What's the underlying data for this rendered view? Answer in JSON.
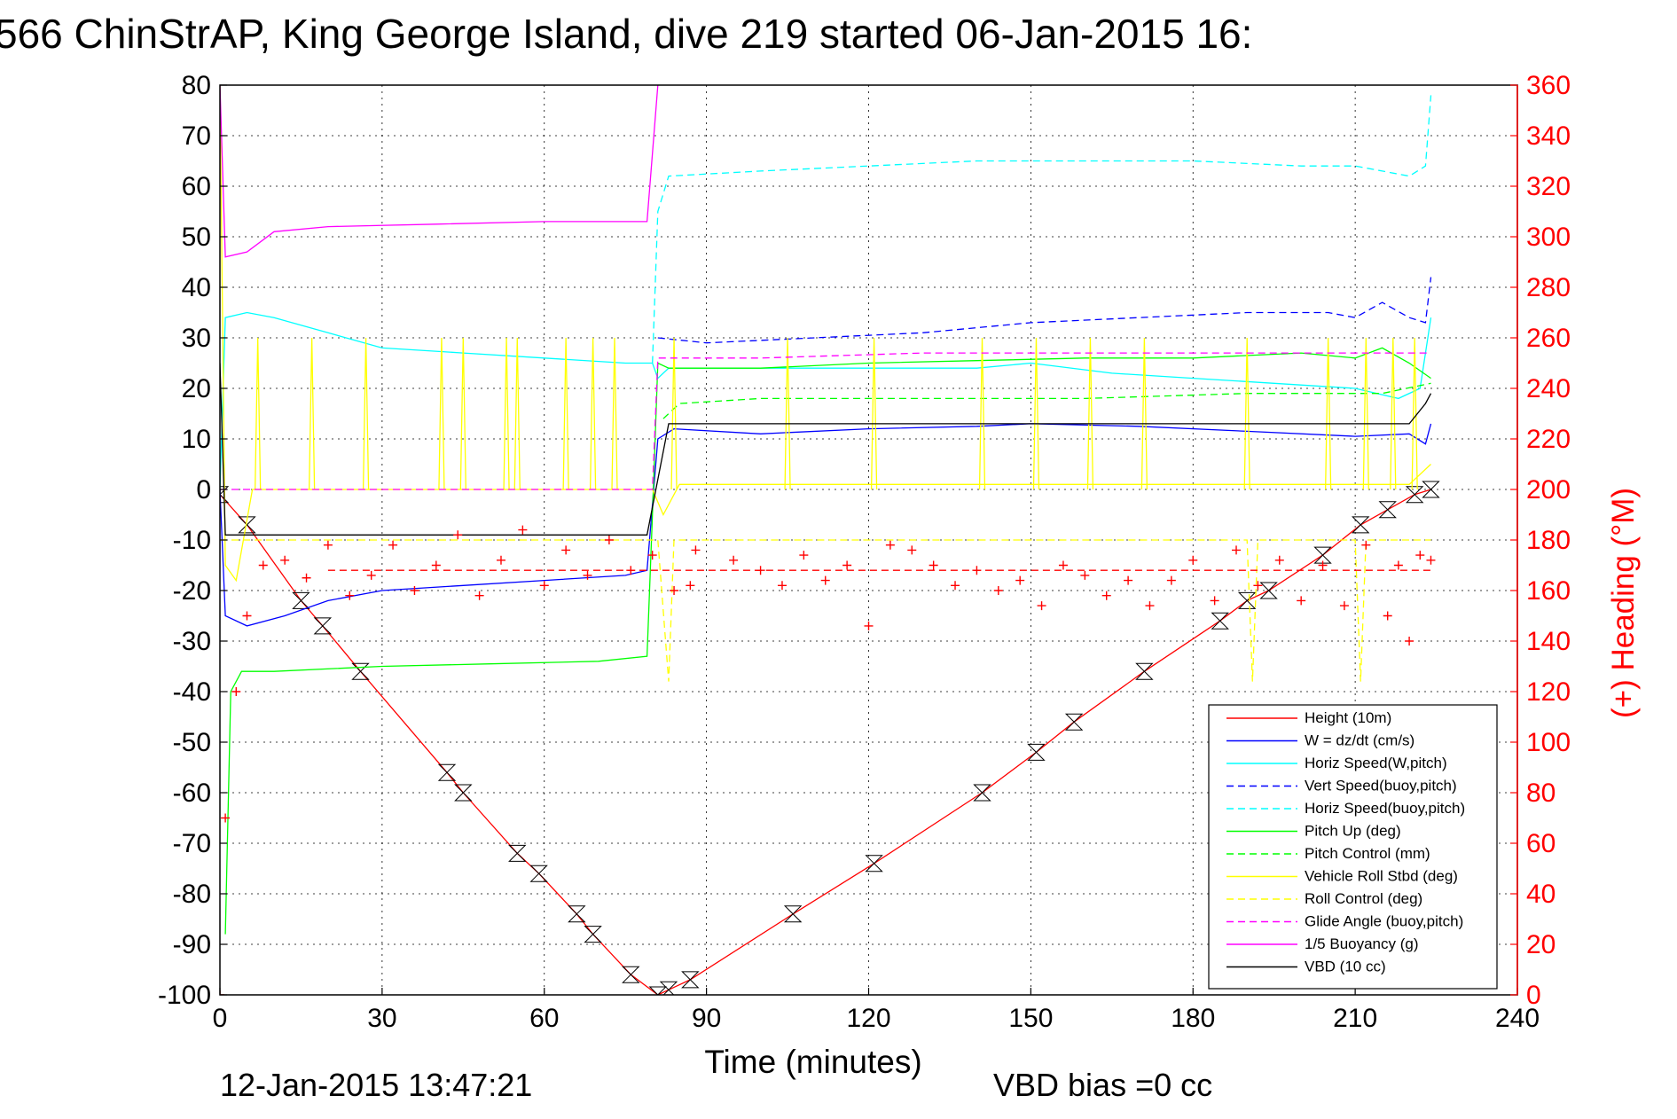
{
  "chart_data": {
    "type": "line",
    "title": "566 ChinStrAP, King George Island, dive 219 started 06-Jan-2015 16:",
    "xlabel": "Time (minutes)",
    "ylabel_right": "(+) Heading (°M)",
    "footer_left": "12-Jan-2015 13:47:21",
    "footer_right": "VBD bias =0 cc",
    "xlim": [
      0,
      240
    ],
    "ylim_left": [
      -100,
      80
    ],
    "ylim_right": [
      0,
      360
    ],
    "grid": true,
    "legend_position": "bottom-right",
    "x_ticks": [
      "0",
      "30",
      "60",
      "90",
      "120",
      "150",
      "180",
      "210",
      "240"
    ],
    "y_ticks_left": [
      "80",
      "70",
      "60",
      "50",
      "40",
      "30",
      "20",
      "10",
      "0",
      "-10",
      "-20",
      "-30",
      "-40",
      "-50",
      "-60",
      "-70",
      "-80",
      "-90",
      "-100"
    ],
    "y_ticks_right": [
      "360",
      "340",
      "320",
      "300",
      "280",
      "260",
      "240",
      "220",
      "200",
      "180",
      "160",
      "140",
      "120",
      "100",
      "80",
      "60",
      "40",
      "20",
      "0"
    ],
    "colors": {
      "height": "#ff0000",
      "w": "#0000ff",
      "horiz_speed": "#00ffff",
      "vert_speed_buoy": "#0000ff",
      "horiz_speed_buoy": "#00ffff",
      "pitch_up": "#00ff00",
      "pitch_control": "#00ff00",
      "roll": "#ffff00",
      "roll_control": "#ffff00",
      "glide_angle": "#ff00ff",
      "buoyancy": "#ff00ff",
      "vbd": "#000000",
      "heading": "#ff0000"
    },
    "series": [
      {
        "name": "Height (10m)",
        "style": "solid",
        "color": "#ff0000",
        "points": [
          [
            0,
            -1
          ],
          [
            5,
            -7
          ],
          [
            15,
            -22
          ],
          [
            19,
            -27
          ],
          [
            26,
            -36
          ],
          [
            42,
            -56
          ],
          [
            45,
            -60
          ],
          [
            55,
            -72
          ],
          [
            59,
            -76
          ],
          [
            66,
            -84
          ],
          [
            69,
            -88
          ],
          [
            76,
            -96
          ],
          [
            81,
            -100
          ],
          [
            83,
            -99
          ],
          [
            87,
            -97
          ],
          [
            106,
            -84
          ],
          [
            121,
            -74
          ],
          [
            141,
            -60
          ],
          [
            151,
            -52
          ],
          [
            158,
            -46
          ],
          [
            171,
            -36
          ],
          [
            185,
            -26
          ],
          [
            190,
            -22
          ],
          [
            194,
            -20
          ],
          [
            204,
            -13
          ],
          [
            211,
            -7
          ],
          [
            216,
            -4
          ],
          [
            221,
            -1
          ],
          [
            224,
            0
          ]
        ]
      },
      {
        "name": "W = dz/dt (cm/s)",
        "style": "solid",
        "color": "#0000ff",
        "points": [
          [
            0,
            0
          ],
          [
            1,
            -25
          ],
          [
            5,
            -27
          ],
          [
            12,
            -25
          ],
          [
            20,
            -22
          ],
          [
            30,
            -20
          ],
          [
            45,
            -19
          ],
          [
            60,
            -18
          ],
          [
            75,
            -17
          ],
          [
            79,
            -16
          ],
          [
            81,
            10
          ],
          [
            84,
            12
          ],
          [
            100,
            11
          ],
          [
            120,
            12
          ],
          [
            140,
            12.5
          ],
          [
            150,
            13
          ],
          [
            170,
            12.5
          ],
          [
            190,
            11.5
          ],
          [
            210,
            10.5
          ],
          [
            220,
            11
          ],
          [
            223,
            9
          ],
          [
            224,
            13
          ]
        ]
      },
      {
        "name": "Horiz Speed(W,pitch)",
        "style": "solid",
        "color": "#00ffff",
        "points": [
          [
            0,
            0
          ],
          [
            1,
            34
          ],
          [
            5,
            35
          ],
          [
            10,
            34
          ],
          [
            20,
            31
          ],
          [
            30,
            28
          ],
          [
            45,
            27
          ],
          [
            60,
            26
          ],
          [
            75,
            25
          ],
          [
            80,
            25
          ],
          [
            81,
            22
          ],
          [
            83,
            24
          ],
          [
            100,
            24
          ],
          [
            120,
            24
          ],
          [
            140,
            24
          ],
          [
            150,
            25
          ],
          [
            165,
            23
          ],
          [
            180,
            22
          ],
          [
            195,
            21
          ],
          [
            210,
            20
          ],
          [
            218,
            18
          ],
          [
            222,
            20
          ],
          [
            224,
            34
          ]
        ]
      },
      {
        "name": "Vert Speed(buoy,pitch)",
        "style": "dashed",
        "color": "#0000ff",
        "points": [
          [
            81,
            30
          ],
          [
            90,
            29
          ],
          [
            110,
            30
          ],
          [
            130,
            31
          ],
          [
            150,
            33
          ],
          [
            170,
            34
          ],
          [
            190,
            35
          ],
          [
            205,
            35
          ],
          [
            210,
            34
          ],
          [
            215,
            37
          ],
          [
            220,
            34
          ],
          [
            223,
            33
          ],
          [
            224,
            42
          ]
        ]
      },
      {
        "name": "Horiz Speed(buoy,pitch)",
        "style": "dashed",
        "color": "#00ffff",
        "points": [
          [
            80,
            25
          ],
          [
            81,
            55
          ],
          [
            83,
            62
          ],
          [
            100,
            63
          ],
          [
            120,
            64
          ],
          [
            140,
            65
          ],
          [
            160,
            65
          ],
          [
            180,
            65
          ],
          [
            200,
            64
          ],
          [
            210,
            64
          ],
          [
            215,
            63
          ],
          [
            220,
            62
          ],
          [
            223,
            64
          ],
          [
            224,
            78
          ]
        ]
      },
      {
        "name": "Pitch Up (deg)",
        "style": "solid",
        "color": "#00ff00",
        "points": [
          [
            1,
            -88
          ],
          [
            2,
            -40
          ],
          [
            4,
            -36
          ],
          [
            10,
            -36
          ],
          [
            30,
            -35
          ],
          [
            50,
            -34.5
          ],
          [
            70,
            -34
          ],
          [
            79,
            -33
          ],
          [
            80,
            -5
          ],
          [
            81,
            25
          ],
          [
            83,
            24
          ],
          [
            100,
            24
          ],
          [
            120,
            25
          ],
          [
            140,
            25.5
          ],
          [
            160,
            26
          ],
          [
            180,
            26
          ],
          [
            200,
            27
          ],
          [
            210,
            26
          ],
          [
            215,
            28
          ],
          [
            220,
            25
          ],
          [
            224,
            22
          ]
        ]
      },
      {
        "name": "Pitch Control (mm)",
        "style": "dashed",
        "color": "#00ff00",
        "points": [
          [
            82,
            14
          ],
          [
            85,
            17
          ],
          [
            100,
            18
          ],
          [
            130,
            18
          ],
          [
            160,
            18
          ],
          [
            190,
            19
          ],
          [
            215,
            19
          ],
          [
            224,
            21
          ]
        ]
      },
      {
        "name": "Vehicle Roll Stbd (deg)",
        "style": "solid",
        "color": "#ffff00",
        "points": [
          [
            0,
            80
          ],
          [
            1,
            -15
          ],
          [
            3,
            -18
          ],
          [
            6,
            0
          ],
          [
            20,
            0
          ],
          [
            40,
            0
          ],
          [
            60,
            0
          ],
          [
            80,
            0
          ],
          [
            82,
            -5
          ],
          [
            85,
            1
          ],
          [
            100,
            1
          ],
          [
            120,
            1
          ],
          [
            140,
            1
          ],
          [
            160,
            1
          ],
          [
            180,
            1
          ],
          [
            200,
            1
          ],
          [
            210,
            1
          ],
          [
            220,
            1
          ],
          [
            224,
            5
          ]
        ],
        "spikes_to": 30,
        "spike_x": [
          7,
          17,
          27,
          41,
          45,
          53,
          55,
          64,
          69,
          73,
          84,
          105,
          121,
          141,
          151,
          161,
          171,
          190,
          205,
          212,
          217,
          221
        ]
      },
      {
        "name": "Roll Control (deg)",
        "style": "dashed",
        "color": "#ffff00",
        "points": [
          [
            0,
            -10
          ],
          [
            80,
            -10
          ],
          [
            81,
            -10
          ],
          [
            83,
            -38
          ],
          [
            84,
            -10
          ],
          [
            190,
            -10
          ],
          [
            191,
            -38
          ],
          [
            192,
            -10
          ],
          [
            210,
            -10
          ],
          [
            211,
            -38
          ],
          [
            212,
            -10
          ],
          [
            224,
            -10
          ]
        ]
      },
      {
        "name": "Glide Angle (buoy,pitch)",
        "style": "dashed",
        "color": "#ff00ff",
        "points": [
          [
            0,
            0
          ],
          [
            80,
            0
          ],
          [
            81,
            26
          ],
          [
            100,
            26
          ],
          [
            130,
            27
          ],
          [
            160,
            27
          ],
          [
            190,
            27
          ],
          [
            210,
            27
          ],
          [
            224,
            27
          ]
        ]
      },
      {
        "name": "1/5 Buoyancy (g)",
        "style": "solid",
        "color": "#ff00ff",
        "points": [
          [
            0,
            80
          ],
          [
            1,
            46
          ],
          [
            5,
            47
          ],
          [
            10,
            51
          ],
          [
            20,
            52
          ],
          [
            40,
            52.5
          ],
          [
            60,
            53
          ],
          [
            79,
            53
          ],
          [
            81,
            80
          ]
        ]
      },
      {
        "name": "VBD (10 cc)",
        "style": "solid",
        "color": "#000000",
        "points": [
          [
            0,
            25
          ],
          [
            1,
            -9
          ],
          [
            40,
            -9
          ],
          [
            79,
            -9
          ],
          [
            81,
            2
          ],
          [
            83,
            13
          ],
          [
            140,
            13
          ],
          [
            220,
            13
          ],
          [
            223,
            17
          ],
          [
            224,
            19
          ]
        ]
      },
      {
        "name": "Heading",
        "axis": "right",
        "style": "marker-plus",
        "color": "#ff0000",
        "points": [
          [
            0,
            0
          ],
          [
            1,
            70
          ],
          [
            3,
            120
          ],
          [
            5,
            150
          ],
          [
            8,
            170
          ],
          [
            12,
            172
          ],
          [
            16,
            165
          ],
          [
            20,
            178
          ],
          [
            24,
            158
          ],
          [
            28,
            166
          ],
          [
            32,
            178
          ],
          [
            36,
            160
          ],
          [
            40,
            170
          ],
          [
            44,
            182
          ],
          [
            48,
            158
          ],
          [
            52,
            172
          ],
          [
            56,
            184
          ],
          [
            60,
            162
          ],
          [
            64,
            176
          ],
          [
            68,
            166
          ],
          [
            72,
            180
          ],
          [
            76,
            168
          ],
          [
            80,
            174
          ],
          [
            84,
            160
          ],
          [
            87,
            162
          ],
          [
            88,
            176
          ],
          [
            95,
            172
          ],
          [
            100,
            168
          ],
          [
            104,
            162
          ],
          [
            108,
            174
          ],
          [
            112,
            164
          ],
          [
            116,
            170
          ],
          [
            120,
            146
          ],
          [
            124,
            178
          ],
          [
            128,
            176
          ],
          [
            132,
            170
          ],
          [
            136,
            162
          ],
          [
            140,
            168
          ],
          [
            144,
            160
          ],
          [
            148,
            164
          ],
          [
            152,
            154
          ],
          [
            156,
            170
          ],
          [
            160,
            166
          ],
          [
            164,
            158
          ],
          [
            168,
            164
          ],
          [
            172,
            154
          ],
          [
            176,
            164
          ],
          [
            180,
            172
          ],
          [
            184,
            156
          ],
          [
            188,
            176
          ],
          [
            192,
            162
          ],
          [
            196,
            172
          ],
          [
            200,
            156
          ],
          [
            204,
            170
          ],
          [
            208,
            154
          ],
          [
            212,
            178
          ],
          [
            216,
            150
          ],
          [
            218,
            170
          ],
          [
            220,
            140
          ],
          [
            222,
            174
          ],
          [
            224,
            172
          ]
        ]
      },
      {
        "name": "Heading Desired",
        "axis": "right",
        "style": "dashed",
        "color": "#ff0000",
        "points": [
          [
            20,
            168
          ],
          [
            80,
            168
          ],
          [
            224,
            168
          ]
        ]
      }
    ]
  },
  "legend": [
    {
      "label": "Height (10m)",
      "color": "#ff0000",
      "dash": false
    },
    {
      "label": "W = dz/dt (cm/s)",
      "color": "#0000ff",
      "dash": false
    },
    {
      "label": "Horiz Speed(W,pitch)",
      "color": "#00ffff",
      "dash": false
    },
    {
      "label": "Vert Speed(buoy,pitch)",
      "color": "#0000ff",
      "dash": true
    },
    {
      "label": "Horiz Speed(buoy,pitch)",
      "color": "#00ffff",
      "dash": true
    },
    {
      "label": "Pitch Up (deg)",
      "color": "#00ff00",
      "dash": false
    },
    {
      "label": "Pitch Control (mm)",
      "color": "#00ff00",
      "dash": true
    },
    {
      "label": "Vehicle Roll Stbd (deg)",
      "color": "#ffff00",
      "dash": false
    },
    {
      "label": "Roll Control (deg)",
      "color": "#ffff00",
      "dash": true
    },
    {
      "label": "Glide Angle (buoy,pitch)",
      "color": "#ff00ff",
      "dash": true
    },
    {
      "label": "1/5 Buoyancy (g)",
      "color": "#ff00ff",
      "dash": false
    },
    {
      "label": "VBD (10 cc)",
      "color": "#000000",
      "dash": false
    }
  ]
}
